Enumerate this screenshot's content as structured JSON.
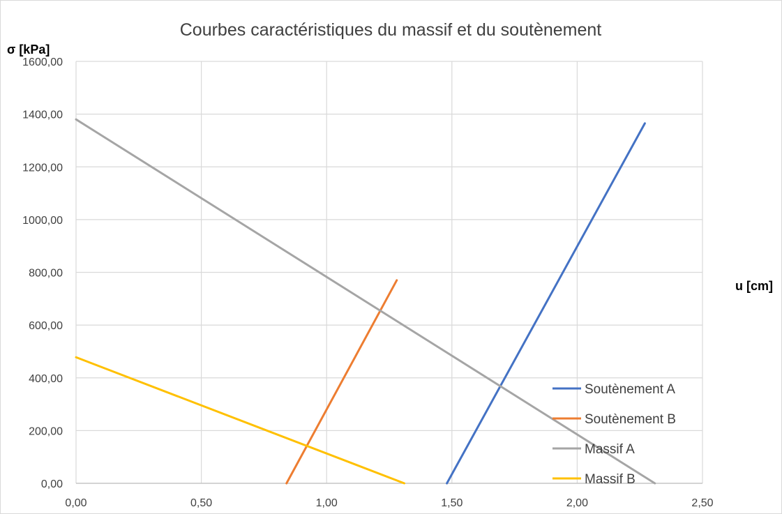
{
  "chart_data": {
    "type": "line",
    "title": "Courbes caractéristiques du massif et du soutènement",
    "xlabel": "u [cm]",
    "ylabel": "σ [kPa]",
    "xlim": [
      0,
      2.5
    ],
    "ylim": [
      0,
      1600
    ],
    "xticks": [
      0,
      0.5,
      1.0,
      1.5,
      2.0,
      2.5
    ],
    "yticks": [
      0,
      200,
      400,
      600,
      800,
      1000,
      1200,
      1400,
      1600
    ],
    "xtick_labels": [
      "0,00",
      "0,50",
      "1,00",
      "1,50",
      "2,00",
      "2,50"
    ],
    "ytick_labels": [
      "0,00",
      "200,00",
      "400,00",
      "600,00",
      "800,00",
      "1000,00",
      "1200,00",
      "1400,00",
      "1600,00"
    ],
    "grid": true,
    "legend_position": "bottom-right",
    "series": [
      {
        "name": "Soutènement A",
        "color": "#4472c4",
        "points": [
          [
            1.48,
            0
          ],
          [
            2.27,
            1365
          ]
        ]
      },
      {
        "name": "Soutènement B",
        "color": "#ed7d31",
        "points": [
          [
            0.84,
            0
          ],
          [
            1.28,
            770
          ]
        ]
      },
      {
        "name": "Massif A",
        "color": "#a5a5a5",
        "points": [
          [
            0.0,
            1380
          ],
          [
            2.31,
            0
          ]
        ]
      },
      {
        "name": "Massif B",
        "color": "#ffc000",
        "points": [
          [
            0.0,
            478
          ],
          [
            1.31,
            0
          ]
        ]
      }
    ]
  }
}
